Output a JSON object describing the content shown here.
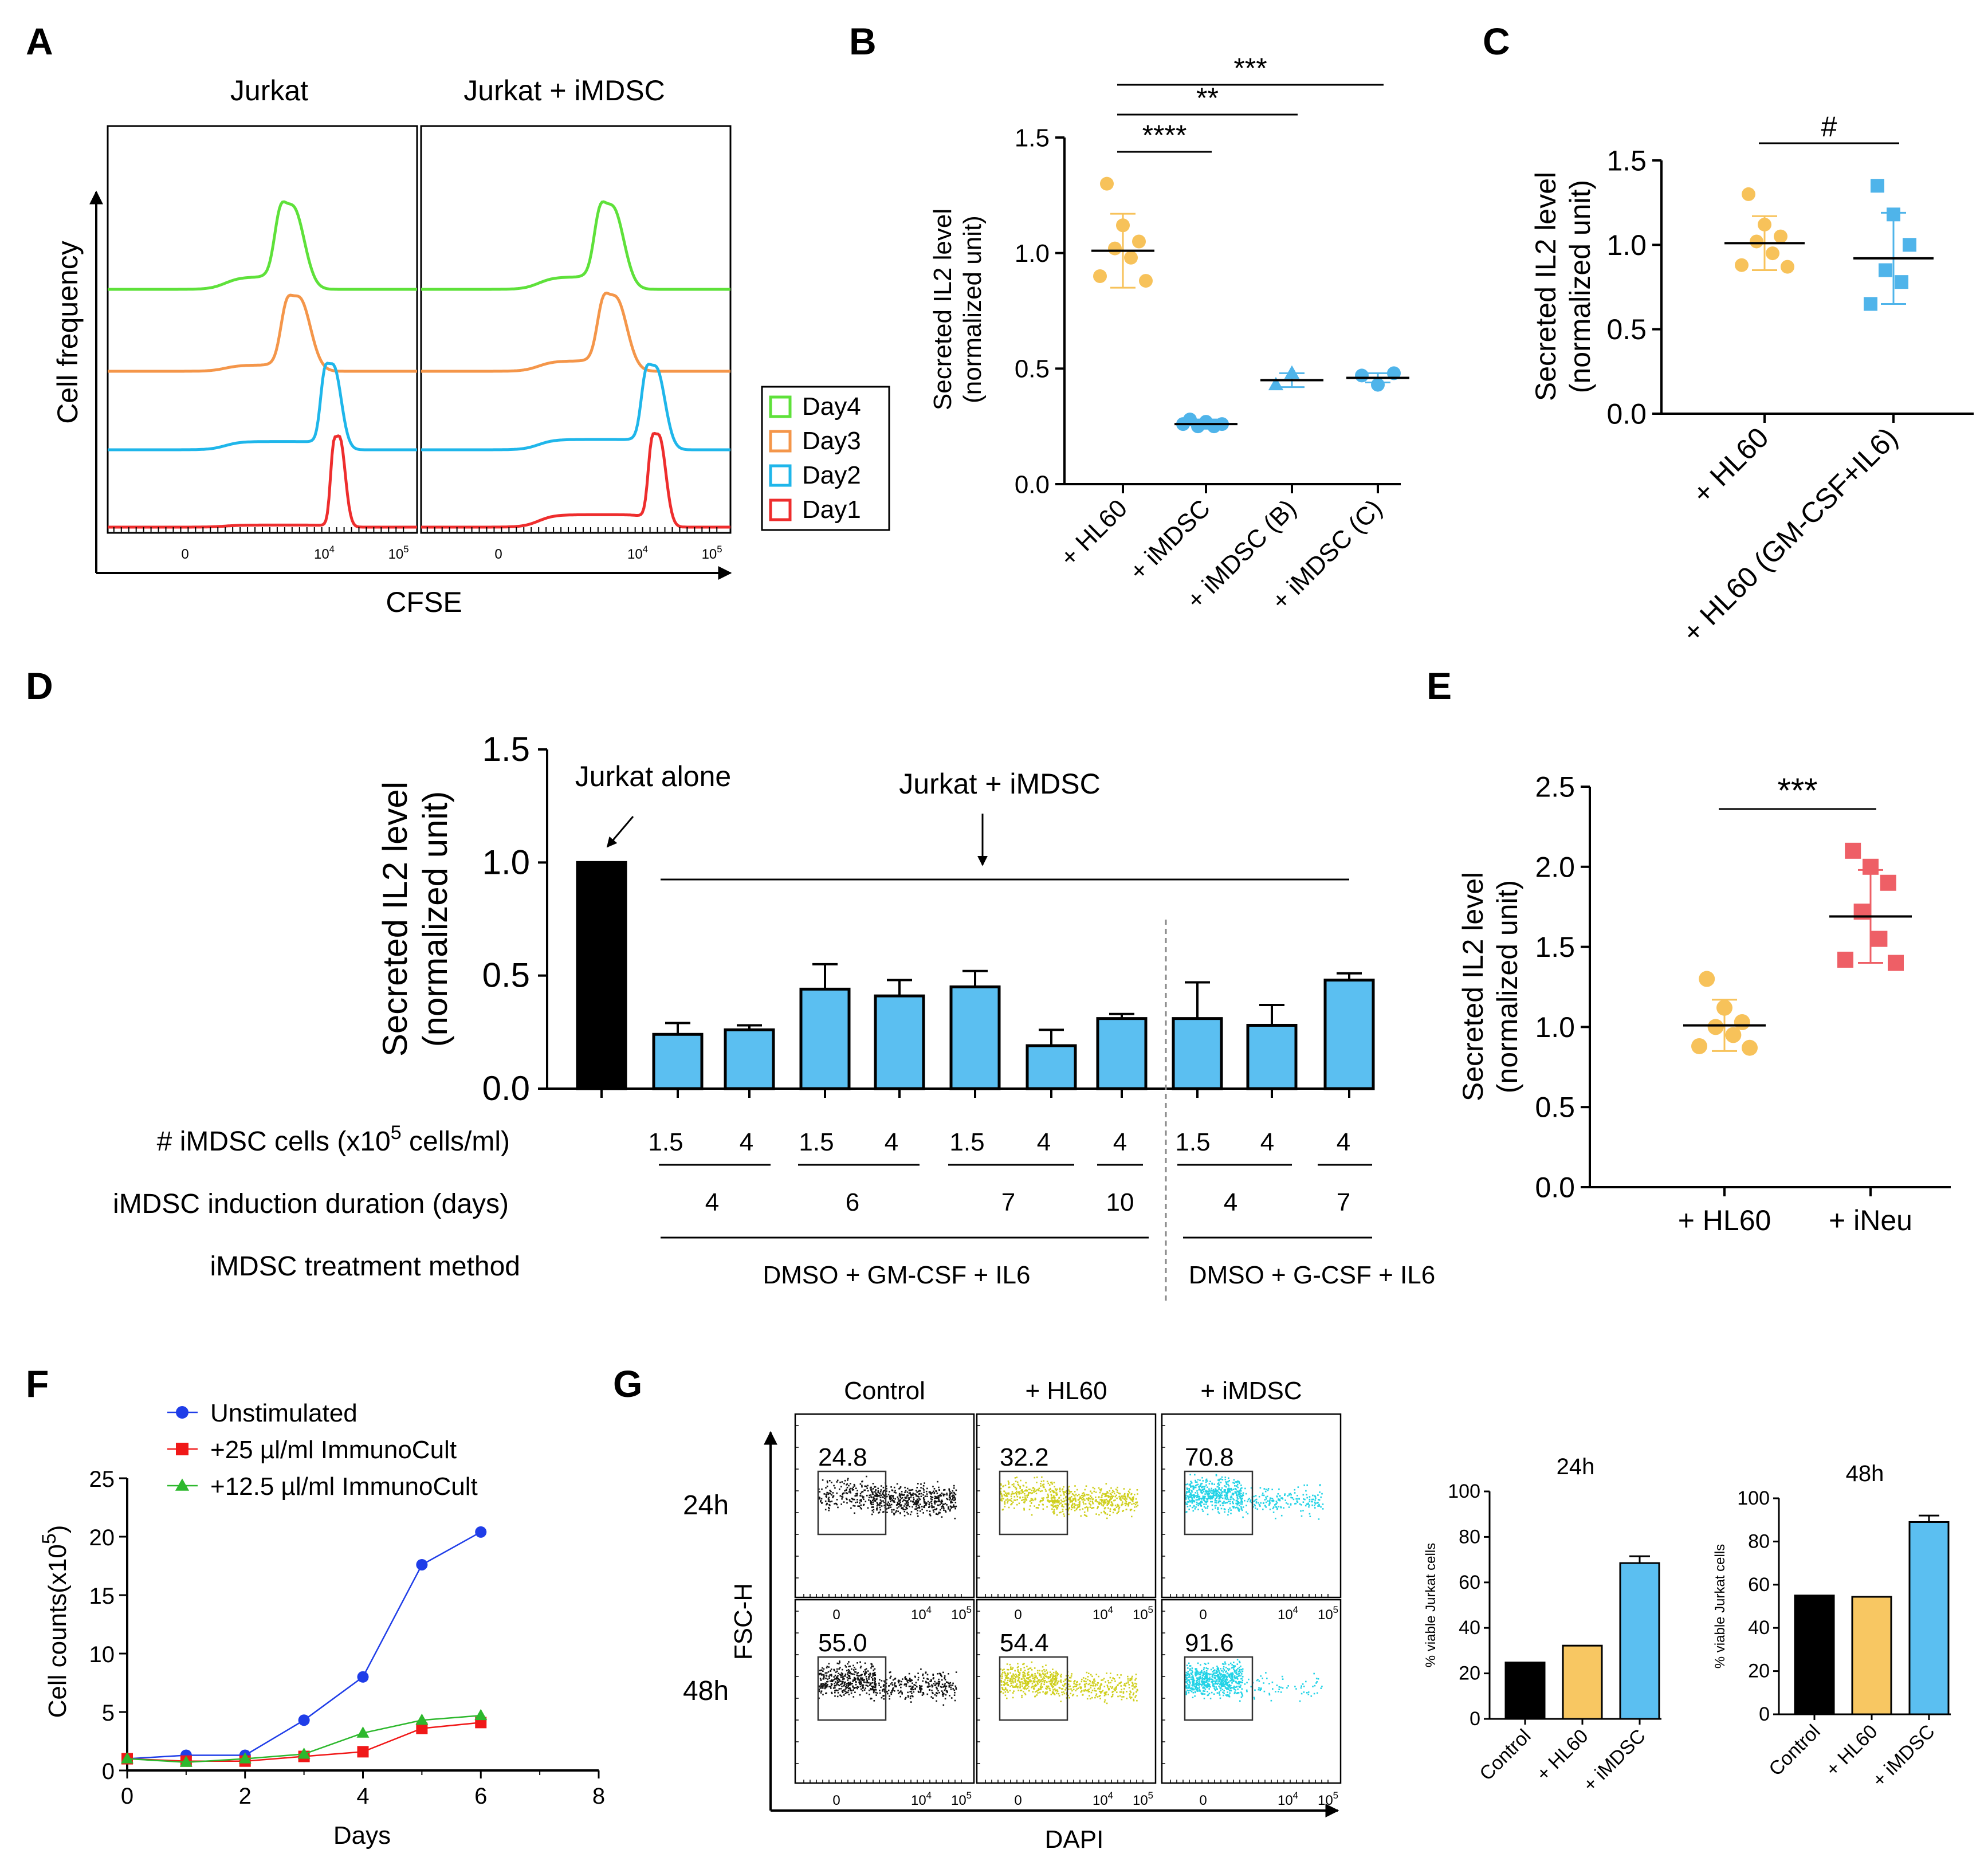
{
  "panel_labels": [
    "A",
    "B",
    "C",
    "D",
    "E",
    "F",
    "G"
  ],
  "chart_data": [
    {
      "panel": "A",
      "type": "line",
      "subtype": "flow-cytometry-histogram",
      "columns": [
        "Jurkat",
        "Jurkat + iMDSC"
      ],
      "xlabel": "CFSE",
      "ylabel": "Cell frequency",
      "x_ticks": [
        "0",
        "10^4",
        "10^5"
      ],
      "legend": [
        {
          "name": "Day4",
          "color": "#5ee13a"
        },
        {
          "name": "Day3",
          "color": "#f4964a"
        },
        {
          "name": "Day2",
          "color": "#1fb6ea"
        },
        {
          "name": "Day1",
          "color": "#ee2d2d"
        }
      ],
      "series": [
        {
          "name": "Day4",
          "color": "#5ee13a",
          "column": "Jurkat",
          "peak_x": 0.6,
          "width": 0.05,
          "height": 0.78,
          "left_shoulder": 0.12
        },
        {
          "name": "Day3",
          "color": "#f4964a",
          "column": "Jurkat",
          "peak_x": 0.62,
          "width": 0.05,
          "height": 0.7,
          "left_shoulder": 0.06
        },
        {
          "name": "Day2",
          "color": "#1fb6ea",
          "column": "Jurkat",
          "peak_x": 0.73,
          "width": 0.035,
          "height": 0.8,
          "left_shoulder": 0.08
        },
        {
          "name": "Day1",
          "color": "#ee2d2d",
          "column": "Jurkat",
          "peak_x": 0.75,
          "width": 0.025,
          "height": 0.86,
          "left_shoulder": 0.02
        },
        {
          "name": "Day4",
          "color": "#5ee13a",
          "column": "Jurkat + iMDSC",
          "peak_x": 0.62,
          "width": 0.05,
          "height": 0.78,
          "left_shoulder": 0.12
        },
        {
          "name": "Day3",
          "color": "#f4964a",
          "column": "Jurkat + iMDSC",
          "peak_x": 0.63,
          "width": 0.05,
          "height": 0.7,
          "left_shoulder": 0.1
        },
        {
          "name": "Day2",
          "color": "#1fb6ea",
          "column": "Jurkat + iMDSC",
          "peak_x": 0.76,
          "width": 0.04,
          "height": 0.78,
          "left_shoulder": 0.1
        },
        {
          "name": "Day1",
          "color": "#ee2d2d",
          "column": "Jurkat + iMDSC",
          "peak_x": 0.77,
          "width": 0.03,
          "height": 0.86,
          "left_shoulder": 0.12
        }
      ]
    },
    {
      "panel": "B",
      "type": "scatter",
      "ylabel": "Secreted IL2 level",
      "ylabel2": "(normalized unit)",
      "ylim": [
        0,
        1.5
      ],
      "y_ticks": [
        "0.0",
        "0.5",
        "1.0",
        "1.5"
      ],
      "categories": [
        "+ HL60",
        "+ iMDSC",
        "+ iMDSC (B)",
        "+ iMDSC (C)"
      ],
      "groups": [
        {
          "name": "+ HL60",
          "color": "#f7c25a",
          "marker": "circle",
          "mean": 1.01,
          "sd": 0.16,
          "points": [
            1.3,
            1.12,
            1.05,
            1.02,
            0.98,
            0.9,
            0.88
          ]
        },
        {
          "name": "+ iMDSC",
          "color": "#4fb4ea",
          "marker": "circle",
          "mean": 0.26,
          "sd": 0.02,
          "points": [
            0.28,
            0.27,
            0.26,
            0.25,
            0.25,
            0.26
          ]
        },
        {
          "name": "+ iMDSC (B)",
          "color": "#4fb4ea",
          "marker": "triangle",
          "mean": 0.45,
          "sd": 0.03,
          "points": [
            0.43,
            0.48
          ]
        },
        {
          "name": "+ iMDSC (C)",
          "color": "#4fb4ea",
          "marker": "circle",
          "mean": 0.46,
          "sd": 0.02,
          "points": [
            0.47,
            0.43,
            0.48
          ]
        }
      ],
      "significance": [
        {
          "label": "****",
          "from": 0,
          "to": 1
        },
        {
          "label": "**",
          "from": 0,
          "to": 2
        },
        {
          "label": "***",
          "from": 0,
          "to": 3
        }
      ]
    },
    {
      "panel": "C",
      "type": "scatter",
      "ylabel": "Secreted IL2 level",
      "ylabel2": "(normalized unit)",
      "ylim": [
        0,
        1.5
      ],
      "y_ticks": [
        "0.0",
        "0.5",
        "1.0",
        "1.5"
      ],
      "categories": [
        "+ HL60",
        "+ HL60 (GM-CSF+IL6)"
      ],
      "groups": [
        {
          "name": "+ HL60",
          "color": "#f7c25a",
          "marker": "circle",
          "mean": 1.01,
          "sd": 0.16,
          "points": [
            1.3,
            1.12,
            1.05,
            1.02,
            0.95,
            0.88,
            0.87
          ]
        },
        {
          "name": "+ HL60 (GM-CSF+IL6)",
          "color": "#4fb4ea",
          "marker": "square",
          "mean": 0.92,
          "sd": 0.27,
          "points": [
            1.35,
            1.18,
            1.0,
            0.85,
            0.78,
            0.65
          ]
        }
      ],
      "significance": [
        {
          "label": "#",
          "from": 0,
          "to": 1
        }
      ]
    },
    {
      "panel": "D",
      "type": "bar",
      "ylabel": "Secreted IL2 level",
      "ylabel2": "(normalized unit)",
      "ylim": [
        0,
        1.5
      ],
      "y_ticks": [
        "0.0",
        "0.5",
        "1.0",
        "1.5"
      ],
      "values": [
        1.0,
        0.24,
        0.26,
        0.44,
        0.41,
        0.45,
        0.19,
        0.31,
        0.31,
        0.28,
        0.48
      ],
      "errors": [
        0,
        0.05,
        0.02,
        0.11,
        0.07,
        0.07,
        0.07,
        0.02,
        0.16,
        0.09,
        0.03
      ],
      "colors": [
        "#000000",
        "#5bbff1",
        "#5bbff1",
        "#5bbff1",
        "#5bbff1",
        "#5bbff1",
        "#5bbff1",
        "#5bbff1",
        "#5bbff1",
        "#5bbff1",
        "#5bbff1"
      ],
      "annotations": {
        "jurkat_alone": "Jurkat alone",
        "jurkat_imdsc": "Jurkat + iMDSC"
      },
      "row_labels": {
        "cells_prefix": "# iMDSC cells (x10",
        "cells_sup": "5",
        "cells_suffix": " cells/ml)",
        "duration": "iMDSC induction duration (days)",
        "method": "iMDSC treatment method"
      },
      "cell_counts": [
        "1.5",
        "4",
        "1.5",
        "4",
        "1.5",
        "4",
        "4",
        "1.5",
        "4",
        "4"
      ],
      "durations": [
        "4",
        "6",
        "7",
        "10",
        "4",
        "7"
      ],
      "methods": [
        "DMSO + GM-CSF + IL6",
        "DMSO + G-CSF + IL6"
      ]
    },
    {
      "panel": "E",
      "type": "scatter",
      "ylabel": "Secreted IL2 level",
      "ylabel2": "(normalized unit)",
      "ylim": [
        0,
        2.5
      ],
      "y_ticks": [
        "0.0",
        "0.5",
        "1.0",
        "1.5",
        "2.0",
        "2.5"
      ],
      "categories": [
        "+ HL60",
        "+ iNeu"
      ],
      "groups": [
        {
          "name": "+ HL60",
          "color": "#f7c25a",
          "marker": "circle",
          "mean": 1.01,
          "sd": 0.16,
          "points": [
            1.3,
            1.12,
            1.03,
            1.0,
            0.95,
            0.88,
            0.87
          ]
        },
        {
          "name": "+ iNeu",
          "color": "#ee5f66",
          "marker": "square",
          "mean": 1.69,
          "sd": 0.29,
          "points": [
            2.1,
            2.0,
            1.9,
            1.72,
            1.55,
            1.42,
            1.4
          ]
        }
      ],
      "significance": [
        {
          "label": "***",
          "from": 0,
          "to": 1
        }
      ]
    },
    {
      "panel": "F",
      "type": "line",
      "xlabel": "Days",
      "ylabel": "Cell counts(x10",
      "ylabel_sup": "5",
      "ylabel_end": ")",
      "xlim": [
        0,
        8
      ],
      "ylim": [
        0,
        25
      ],
      "x_ticks": [
        "0",
        "2",
        "4",
        "6",
        "8"
      ],
      "y_ticks": [
        "0",
        "5",
        "10",
        "15",
        "20",
        "25"
      ],
      "x": [
        0,
        1,
        2,
        3,
        4,
        5,
        6
      ],
      "series": [
        {
          "name": "Unstimulated",
          "color": "#1f3de8",
          "marker": "circle",
          "values": [
            1.0,
            1.3,
            1.3,
            4.3,
            8.0,
            17.6,
            20.4
          ]
        },
        {
          "name": "+25 µl/ml ImmunoCult",
          "color": "#f01818",
          "marker": "square",
          "values": [
            1.0,
            0.8,
            0.8,
            1.2,
            1.6,
            3.6,
            4.1
          ]
        },
        {
          "name": "+12.5 µl/ml ImmunoCult",
          "color": "#2db82d",
          "marker": "triangle",
          "values": [
            1.0,
            0.7,
            1.0,
            1.4,
            3.2,
            4.3,
            4.7
          ]
        }
      ]
    },
    {
      "panel": "G",
      "type": "scatter",
      "subtype": "flow-cytometry-dotplot",
      "xlabel": "DAPI",
      "ylabel": "FSC-H",
      "columns": [
        "Control",
        "+ HL60",
        "+ iMDSC"
      ],
      "rows": [
        "24h",
        "48h"
      ],
      "x_ticks": [
        "0",
        "10^4",
        "10^5"
      ],
      "colors": [
        "#111111",
        "#cfcf1e",
        "#22d3e6"
      ],
      "gate_values": [
        [
          "24.8",
          "32.2",
          "70.8"
        ],
        [
          "55.0",
          "54.4",
          "91.6"
        ]
      ]
    },
    {
      "panel": "G-24h",
      "type": "bar",
      "title": "24h",
      "ylabel": "% viable Jurkat cells",
      "ylim": [
        0,
        100
      ],
      "y_ticks": [
        "0",
        "20",
        "40",
        "60",
        "80",
        "100"
      ],
      "categories": [
        "Control",
        "+ HL60",
        "+ iMDSC"
      ],
      "values": [
        24.8,
        32.2,
        68.5
      ],
      "errors": [
        0,
        0,
        3.0
      ],
      "colors": [
        "#000000",
        "#f8c762",
        "#5bbff1"
      ]
    },
    {
      "panel": "G-48h",
      "type": "bar",
      "title": "48h",
      "ylabel": "% viable Jurkat cells",
      "ylim": [
        0,
        100
      ],
      "y_ticks": [
        "0",
        "20",
        "40",
        "60",
        "80",
        "100"
      ],
      "categories": [
        "Control",
        "+ HL60",
        "+ iMDSC"
      ],
      "values": [
        55.0,
        54.4,
        89.0
      ],
      "errors": [
        0,
        0,
        3.0
      ],
      "colors": [
        "#000000",
        "#f8c762",
        "#5bbff1"
      ]
    }
  ]
}
